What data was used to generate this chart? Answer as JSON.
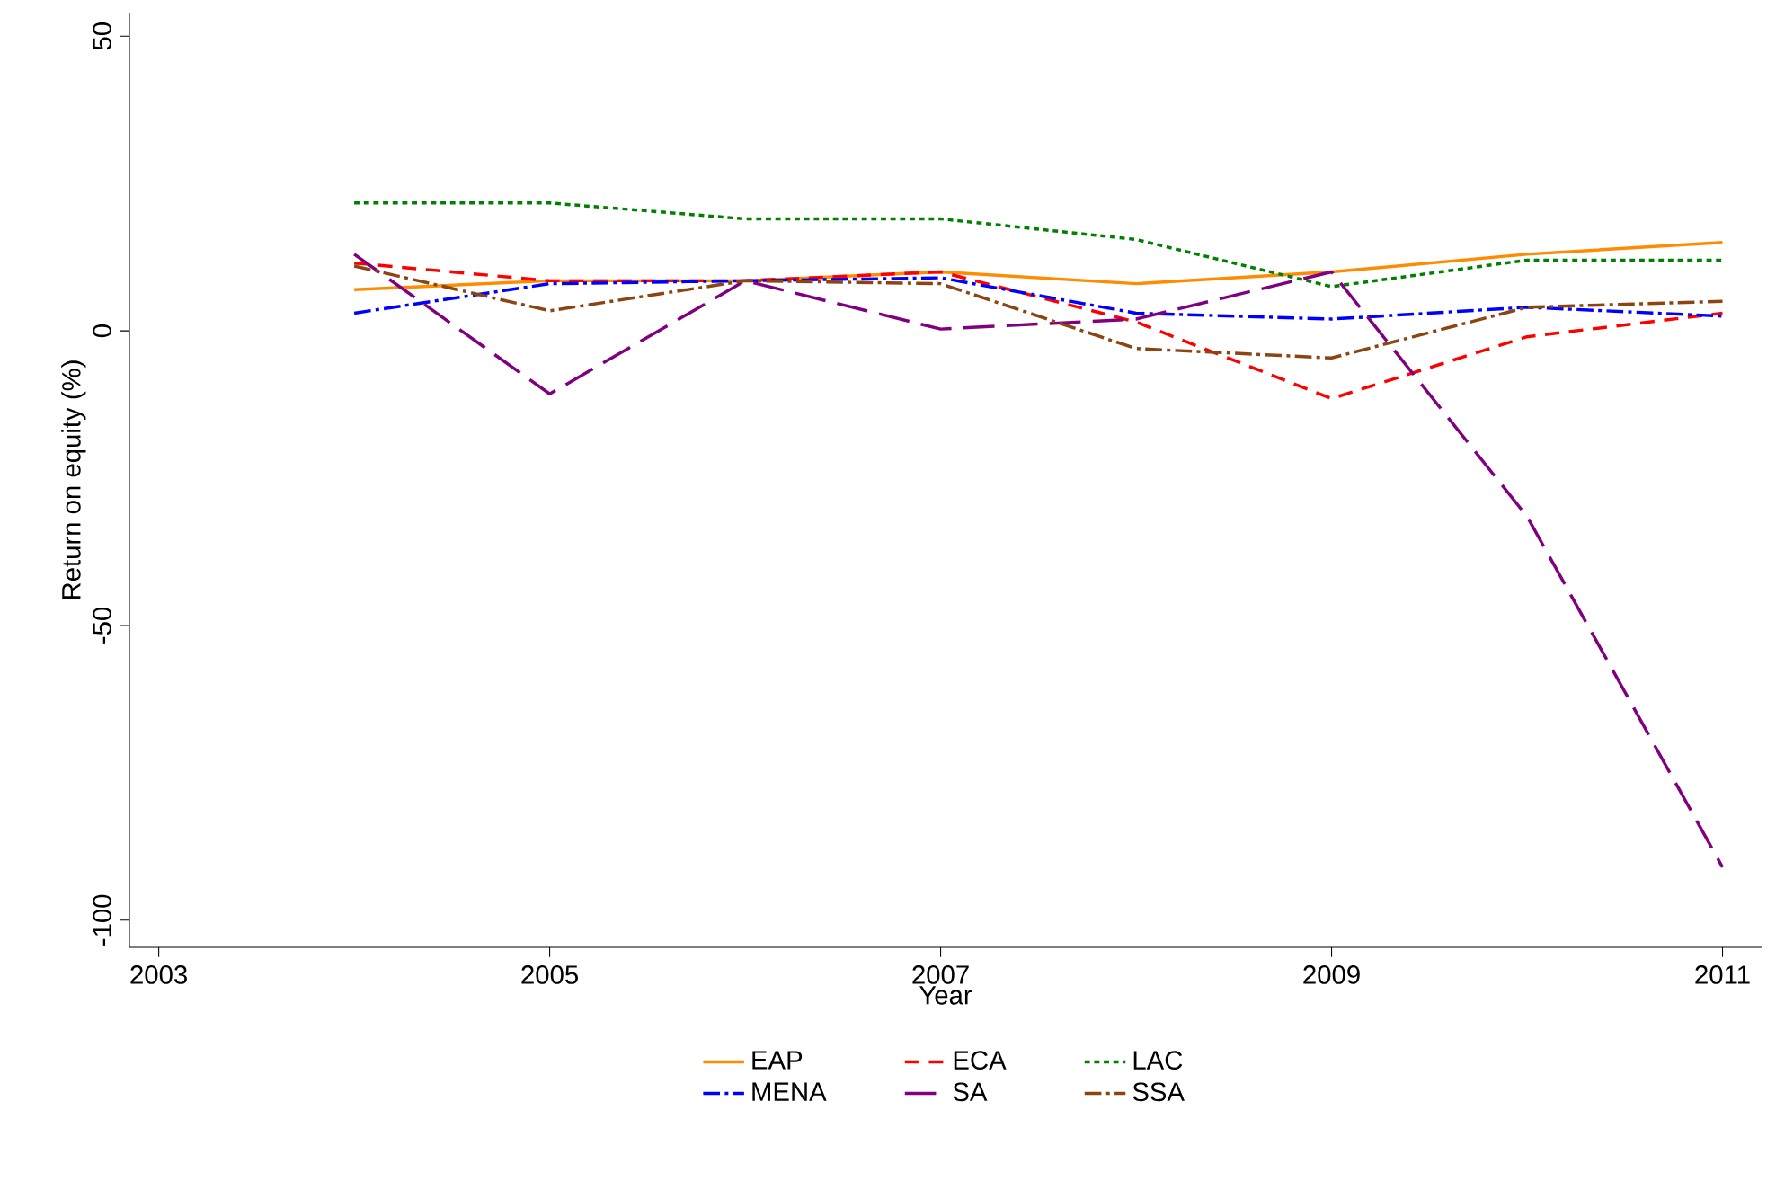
{
  "chart_data": {
    "type": "line",
    "xlabel": "Year",
    "ylabel": "Return on equity (%)",
    "x": [
      2004,
      2005,
      2006,
      2007,
      2008,
      2009,
      2010,
      2011
    ],
    "xlim": [
      2002.85,
      2011.2
    ],
    "xticks": [
      2003,
      2005,
      2007,
      2009,
      2011
    ],
    "ylim": [
      -104.6,
      54
    ],
    "yticks": [
      -100,
      -50,
      0,
      50
    ],
    "grid": false,
    "legend": "bottom",
    "marker": "none",
    "series": [
      {
        "name": "EAP",
        "color": "#ff8c00",
        "line_style": "solid",
        "values": [
          7,
          8.5,
          8.5,
          10,
          8,
          10,
          13,
          15
        ]
      },
      {
        "name": "ECA",
        "color": "#ff0000",
        "line_style": "dashed",
        "values": [
          11.5,
          8.5,
          8.5,
          10,
          1.5,
          -11.5,
          -1,
          3
        ]
      },
      {
        "name": "LAC",
        "color": "#008000",
        "line_style": "dotted",
        "values": [
          21.7,
          21.7,
          19,
          19,
          15.5,
          7.5,
          12,
          12
        ]
      },
      {
        "name": "MENA",
        "color": "#0000ff",
        "line_style": "dashdot",
        "values": [
          3,
          8,
          8.5,
          9,
          3,
          2,
          4,
          2.5
        ]
      },
      {
        "name": "SA",
        "color": "#800080",
        "line_style": "longdash",
        "values": [
          13,
          -10.7,
          8.5,
          0.3,
          2,
          10,
          -31.5,
          -91
        ]
      },
      {
        "name": "SSA",
        "color": "#8b4513",
        "line_style": "dashdot",
        "values": [
          11,
          3.4,
          8.5,
          8,
          -3,
          -4.6,
          4,
          5
        ]
      }
    ]
  }
}
